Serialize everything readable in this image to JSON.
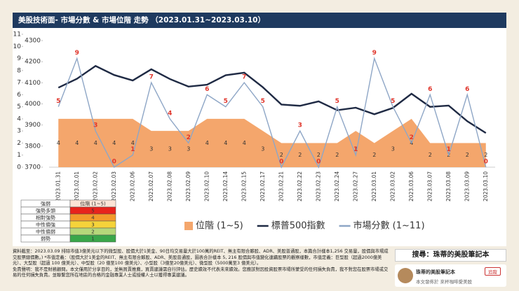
{
  "header": {
    "title": "美股技術面- 市場分數 & 市場位階 走勢 （2023.01.31~2023.03.10）"
  },
  "chart_data": {
    "type": "combo",
    "categories": [
      "2023.01.31",
      "2023.02.01",
      "2023.02.02",
      "2023.02.03",
      "2023.02.06",
      "2023.02.07",
      "2023.02.08",
      "2023.02.09",
      "2023.02.10",
      "2023.02.14",
      "2023.02.15",
      "2023.02.17",
      "2023.02.21",
      "2023.02.22",
      "2023.02.23",
      "2023.02.24",
      "2023.02.27",
      "2023.03.01",
      "2023.03.02",
      "2023.03.06",
      "2023.03.07",
      "2023.03.08",
      "2023.03.09",
      "2023.03.10"
    ],
    "series": [
      {
        "name": "位階 (1~5)",
        "type": "area",
        "color": "#f4a66c",
        "values": [
          4,
          4,
          4,
          4,
          4,
          3,
          3,
          3,
          4,
          4,
          4,
          3,
          2,
          2,
          2,
          2,
          3,
          2,
          3,
          4,
          2,
          2,
          2,
          2
        ]
      },
      {
        "name": "標普500指數",
        "type": "line",
        "axis": "y2",
        "color": "#1f2a44",
        "values": [
          4077,
          4119,
          4180,
          4137,
          4111,
          4164,
          4118,
          4082,
          4091,
          4136,
          4148,
          4079,
          3997,
          3991,
          4012,
          3970,
          3982,
          3951,
          3981,
          4048,
          3986,
          3992,
          3918,
          3862
        ]
      },
      {
        "name": "市場分數 (1~11)",
        "type": "line",
        "color": "#8ea6c6",
        "label_color": "#e0352b",
        "values": [
          5,
          9,
          3,
          0,
          1,
          7,
          4,
          2,
          6,
          5,
          7,
          5,
          0,
          3,
          0,
          5,
          1,
          9,
          5,
          2,
          6,
          1,
          6,
          0
        ]
      }
    ],
    "ylim": [
      0,
      11
    ],
    "yticks": [
      0,
      1,
      2,
      3,
      4,
      5,
      6,
      7,
      8,
      9,
      10,
      11
    ],
    "y2lim": [
      3700,
      4330
    ],
    "y2ticks": [
      3700,
      3800,
      3900,
      4000,
      4100,
      4200,
      4300
    ]
  },
  "legend_table": {
    "header": [
      "強弱",
      "位階 (1~5)"
    ],
    "rows": [
      [
        "強勢多頭",
        5
      ],
      [
        "相對強勢",
        4
      ],
      [
        "中性偏強",
        3
      ],
      [
        "中性偏弱",
        2
      ],
      [
        "弱勢",
        1
      ]
    ],
    "colors": [
      "#e8231c",
      "#f39a2b",
      "#f5d33a",
      "#b5d77a",
      "#3aa64a"
    ]
  },
  "footer": {
    "notes": "資料截至：2023.03.09 排除市值3億美元以下的微型股、股價大於1美金、90日均交易量大於100萬的REIT、無主有限合夥股、ADR、美股普通股，本篇合計樣本1,256 交易量，股價與市場成交股票總價數。) *市值定義：（股價大於1美金的REIT、無主有限合夥股、ADR、美股普通股，圖表合計樣本 5, 216 股價與市值變化連續股票的觀察樣數，市值定義：巨型股（超過2000億美元）、大型股（超過 100 億美元）、中型股（20 億至100 億美元）、小型股（3億至20億美元）、微型股（5000萬至3 億美元）。",
    "disclaimer": "免責聲明：我不是財務顧問。本文僅用於分享目的，並無買賣推薦，買賣建議需自行評估。歷史績效不代表未來績效。您應該對因投資股票市場所蒙受的任何損失負責，我不對您在股票市場或交易的任何損失負責。並聯繫您所在地區的合格的金融專業人士或授權人士以獲得專業建議。"
  },
  "promo": {
    "search": "搜尋：珠蒂的美股筆記本",
    "name": "珠蒂的美股筆記本",
    "follow": "追蹤",
    "source": "本文發佈於 來杯咖啡愛美股"
  }
}
